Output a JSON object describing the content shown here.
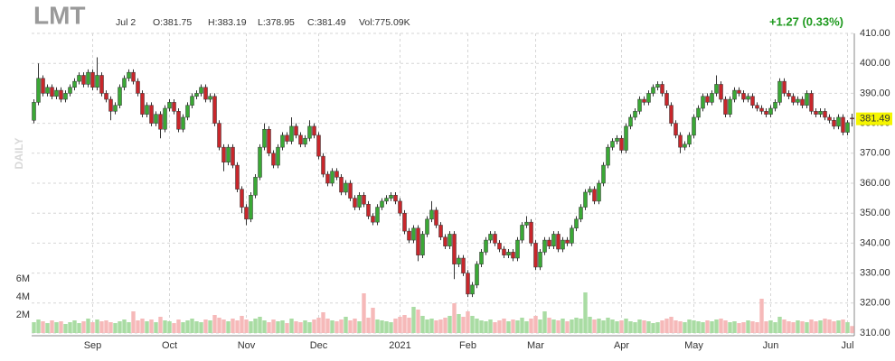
{
  "header": {
    "ticker": "LMT",
    "date": "Jul 2",
    "open": "O:381.75",
    "high": "H:383.19",
    "low": "L:378.95",
    "close": "C:381.49",
    "volume": "Vol:775.09K",
    "change": "+1.27 (0.33%)",
    "period": "DAILY",
    "last_price": "381.49"
  },
  "chart_data": {
    "type": "candlestick",
    "categories": [
      null,
      null,
      null,
      null,
      null,
      null,
      null,
      null,
      null,
      null,
      null,
      null,
      null,
      "Sep",
      null,
      null,
      null,
      null,
      null,
      null,
      null,
      null,
      null,
      null,
      null,
      null,
      null,
      null,
      null,
      null,
      "Oct",
      null,
      null,
      null,
      null,
      null,
      null,
      null,
      null,
      null,
      null,
      null,
      null,
      null,
      null,
      null,
      null,
      "Nov",
      null,
      null,
      null,
      null,
      null,
      null,
      null,
      null,
      null,
      null,
      null,
      null,
      null,
      null,
      null,
      "Dec",
      null,
      null,
      null,
      null,
      null,
      null,
      null,
      null,
      null,
      null,
      null,
      null,
      null,
      null,
      null,
      null,
      null,
      "2021",
      null,
      null,
      null,
      null,
      null,
      null,
      null,
      null,
      null,
      null,
      null,
      null,
      null,
      null,
      "Feb",
      null,
      null,
      null,
      null,
      null,
      null,
      null,
      null,
      null,
      null,
      null,
      null,
      null,
      null,
      "Mar",
      null,
      null,
      null,
      null,
      null,
      null,
      null,
      null,
      null,
      null,
      null,
      null,
      null,
      null,
      null,
      null,
      null,
      null,
      "Apr",
      null,
      null,
      null,
      null,
      null,
      null,
      null,
      null,
      null,
      null,
      null,
      null,
      null,
      null,
      null,
      "May",
      null,
      null,
      null,
      null,
      null,
      null,
      null,
      null,
      null,
      null,
      null,
      null,
      null,
      null,
      null,
      null,
      "Jun",
      null,
      null,
      null,
      null,
      null,
      null,
      null,
      null,
      null,
      null,
      null,
      null,
      null,
      null,
      null,
      null,
      "Jul",
      null
    ],
    "open": [
      381,
      387,
      395,
      390,
      392,
      389,
      391,
      388,
      390,
      392,
      394,
      396,
      393,
      397,
      392,
      396,
      390,
      388,
      384,
      386,
      392,
      395,
      397,
      394,
      390,
      383,
      386,
      380,
      383,
      378,
      385,
      387,
      384,
      378,
      382,
      386,
      389,
      390,
      392,
      388,
      389,
      380,
      372,
      367,
      372,
      366,
      358,
      352,
      348,
      356,
      362,
      372,
      378,
      370,
      366,
      372,
      376,
      374,
      379,
      376,
      373,
      375,
      379,
      376,
      369,
      363,
      360,
      364,
      362,
      357,
      360,
      355,
      352,
      356,
      353,
      349,
      347,
      352,
      354,
      355,
      356,
      354,
      350,
      344,
      341,
      345,
      336,
      343,
      348,
      351,
      346,
      342,
      339,
      343,
      333,
      335,
      330,
      323,
      326,
      333,
      337,
      341,
      343,
      340,
      338,
      336,
      337,
      335,
      341,
      346,
      347,
      340,
      332,
      337,
      341,
      339,
      343,
      338,
      341,
      340,
      345,
      348,
      352,
      357,
      358,
      354,
      360,
      366,
      372,
      374,
      375,
      371,
      379,
      382,
      384,
      388,
      387,
      390,
      392,
      393,
      390,
      386,
      380,
      376,
      372,
      373,
      376,
      382,
      385,
      389,
      387,
      390,
      393,
      388,
      383,
      388,
      391,
      390,
      388,
      389,
      386,
      385,
      384,
      383,
      385,
      387,
      394,
      390,
      389,
      387,
      388,
      386,
      390,
      384,
      383,
      384,
      382,
      381,
      379,
      382,
      377,
      381.75
    ],
    "high": [
      388,
      400,
      396,
      393,
      393,
      392,
      392,
      391,
      393,
      395,
      397,
      397,
      398,
      398,
      402,
      397,
      391,
      389,
      387,
      393,
      396,
      398,
      398,
      395,
      391,
      387,
      387,
      384,
      384,
      386,
      388,
      388,
      385,
      383,
      387,
      390,
      391,
      393,
      393,
      390,
      390,
      381,
      373,
      373,
      373,
      367,
      359,
      353,
      357,
      363,
      373,
      380,
      379,
      371,
      373,
      377,
      377,
      382,
      380,
      377,
      376,
      381,
      380,
      377,
      370,
      364,
      365,
      365,
      363,
      361,
      361,
      356,
      357,
      357,
      354,
      350,
      353,
      355,
      356,
      357,
      357,
      355,
      351,
      345,
      346,
      346,
      344,
      349,
      354,
      352,
      347,
      343,
      344,
      344,
      336,
      336,
      331,
      327,
      334,
      338,
      342,
      344,
      344,
      341,
      339,
      338,
      338,
      342,
      347,
      349,
      348,
      341,
      338,
      342,
      342,
      344,
      344,
      342,
      342,
      346,
      349,
      353,
      358,
      359,
      359,
      361,
      367,
      373,
      375,
      376,
      376,
      380,
      383,
      385,
      389,
      389,
      391,
      393,
      394,
      394,
      391,
      387,
      381,
      377,
      374,
      377,
      383,
      386,
      390,
      390,
      391,
      396,
      394,
      389,
      389,
      392,
      392,
      391,
      390,
      390,
      387,
      386,
      385,
      386,
      388,
      395,
      395,
      391,
      390,
      389,
      389,
      391,
      391,
      385,
      385,
      385,
      383,
      382,
      383,
      383,
      381,
      383.19
    ],
    "low": [
      380,
      386,
      389,
      389,
      388,
      388,
      387,
      387,
      389,
      391,
      393,
      392,
      392,
      391,
      391,
      389,
      387,
      381,
      383,
      385,
      391,
      394,
      393,
      389,
      382,
      382,
      379,
      379,
      375,
      377,
      384,
      383,
      377,
      377,
      381,
      385,
      388,
      389,
      387,
      387,
      379,
      371,
      364,
      366,
      365,
      357,
      350,
      346,
      347,
      355,
      361,
      371,
      369,
      365,
      365,
      371,
      373,
      373,
      375,
      372,
      372,
      374,
      375,
      368,
      362,
      359,
      359,
      361,
      356,
      356,
      354,
      351,
      351,
      352,
      348,
      346,
      346,
      351,
      353,
      354,
      353,
      349,
      343,
      340,
      340,
      334,
      335,
      342,
      347,
      345,
      341,
      338,
      338,
      328,
      332,
      329,
      322,
      322,
      325,
      332,
      336,
      340,
      339,
      337,
      335,
      335,
      334,
      334,
      340,
      345,
      339,
      331,
      331,
      336,
      338,
      338,
      337,
      337,
      339,
      339,
      344,
      347,
      351,
      356,
      353,
      353,
      359,
      365,
      371,
      373,
      370,
      370,
      378,
      381,
      383,
      386,
      386,
      389,
      391,
      389,
      385,
      379,
      375,
      370,
      371,
      372,
      375,
      381,
      384,
      386,
      386,
      389,
      387,
      382,
      382,
      387,
      389,
      387,
      387,
      385,
      384,
      383,
      382,
      382,
      384,
      386,
      389,
      388,
      386,
      386,
      385,
      385,
      383,
      382,
      382,
      381,
      380,
      378,
      378,
      376,
      376,
      378.95
    ],
    "close": [
      387,
      395,
      390,
      392,
      389,
      391,
      388,
      390,
      392,
      394,
      396,
      393,
      397,
      392,
      396,
      390,
      388,
      384,
      386,
      392,
      395,
      397,
      394,
      390,
      383,
      386,
      380,
      383,
      378,
      385,
      387,
      384,
      378,
      382,
      386,
      389,
      390,
      392,
      388,
      389,
      380,
      372,
      367,
      372,
      366,
      358,
      352,
      348,
      356,
      362,
      372,
      378,
      370,
      366,
      372,
      376,
      374,
      379,
      376,
      373,
      375,
      379,
      376,
      369,
      363,
      360,
      364,
      362,
      357,
      360,
      355,
      352,
      356,
      353,
      349,
      347,
      352,
      354,
      355,
      356,
      354,
      350,
      344,
      341,
      345,
      336,
      343,
      348,
      351,
      346,
      342,
      339,
      343,
      333,
      335,
      330,
      323,
      326,
      333,
      337,
      341,
      343,
      340,
      338,
      336,
      337,
      335,
      341,
      346,
      347,
      340,
      332,
      337,
      341,
      339,
      343,
      338,
      341,
      340,
      345,
      348,
      352,
      357,
      358,
      354,
      360,
      366,
      372,
      374,
      375,
      371,
      379,
      382,
      384,
      388,
      387,
      390,
      392,
      393,
      390,
      386,
      380,
      376,
      372,
      373,
      376,
      382,
      385,
      389,
      387,
      390,
      393,
      388,
      383,
      388,
      391,
      390,
      388,
      389,
      386,
      385,
      384,
      383,
      385,
      387,
      394,
      390,
      389,
      387,
      388,
      386,
      390,
      384,
      383,
      384,
      382,
      381,
      379,
      382,
      377,
      380.22,
      381.49
    ],
    "volume": [
      1.2,
      1.5,
      1.3,
      1.1,
      1.4,
      1.2,
      1.3,
      1.0,
      1.2,
      1.4,
      1.1,
      1.3,
      1.6,
      1.2,
      1.5,
      1.3,
      1.4,
      1.2,
      1.1,
      1.3,
      1.5,
      1.2,
      2.4,
      1.4,
      1.6,
      1.3,
      1.5,
      1.2,
      1.8,
      1.4,
      1.3,
      1.1,
      1.5,
      1.2,
      1.4,
      1.6,
      1.3,
      1.2,
      1.5,
      1.4,
      2.0,
      1.7,
      1.5,
      1.3,
      1.6,
      1.4,
      1.9,
      1.5,
      1.3,
      1.6,
      1.8,
      1.4,
      1.2,
      1.5,
      1.3,
      1.4,
      1.1,
      1.6,
      1.3,
      1.2,
      1.4,
      1.2,
      1.5,
      1.7,
      2.3,
      1.6,
      1.4,
      1.3,
      1.5,
      1.8,
      1.4,
      1.6,
      1.3,
      4.4,
      1.7,
      2.8,
      1.5,
      1.4,
      1.3,
      1.2,
      1.6,
      1.8,
      2.0,
      1.7,
      2.9,
      2.6,
      1.9,
      1.5,
      1.6,
      1.4,
      1.5,
      1.7,
      1.9,
      3.3,
      2.1,
      1.8,
      2.4,
      1.9,
      1.6,
      1.4,
      1.3,
      1.5,
      1.2,
      1.4,
      1.6,
      1.3,
      1.5,
      1.4,
      1.7,
      1.3,
      1.6,
      1.9,
      1.5,
      2.4,
      1.7,
      1.5,
      1.4,
      1.6,
      1.3,
      1.5,
      1.7,
      1.6,
      4.5,
      1.8,
      1.5,
      1.6,
      1.4,
      1.7,
      1.5,
      1.3,
      1.4,
      1.6,
      1.3,
      1.2,
      1.5,
      1.4,
      1.3,
      1.1,
      1.2,
      1.4,
      1.6,
      1.8,
      1.4,
      1.3,
      1.2,
      1.5,
      1.4,
      1.3,
      1.2,
      1.4,
      1.3,
      1.5,
      1.6,
      1.4,
      1.2,
      1.3,
      1.1,
      1.2,
      1.4,
      1.3,
      1.2,
      3.8,
      1.3,
      1.4,
      1.2,
      1.8,
      1.5,
      1.3,
      1.2,
      1.4,
      1.3,
      1.2,
      1.5,
      1.3,
      1.4,
      1.6,
      1.5,
      1.3,
      1.4,
      1.5,
      1.2,
      0.77509
    ],
    "up_color": "#3aa835",
    "down_color": "#c8262b",
    "wick_color": "#333333",
    "volume_up_color": "#a9dca3",
    "volume_down_color": "#f6b9b9",
    "ylim": [
      310,
      410
    ],
    "yticks": [
      {
        "value": 310,
        "label": "310.00"
      },
      {
        "value": 320,
        "label": "320.00"
      },
      {
        "value": 330,
        "label": "330.00"
      },
      {
        "value": 340,
        "label": "340.00"
      },
      {
        "value": 350,
        "label": "350.00"
      },
      {
        "value": 360,
        "label": "360.00"
      },
      {
        "value": 370,
        "label": "370.00"
      },
      {
        "value": 380,
        "label": "380.00"
      },
      {
        "value": 390,
        "label": "390.00"
      },
      {
        "value": 400,
        "label": "400.00"
      },
      {
        "value": 410,
        "label": "410.00"
      }
    ],
    "y2lim": [
      0,
      6
    ],
    "y2ticks": [
      {
        "value": 2,
        "label": "2M"
      },
      {
        "value": 4,
        "label": "4M"
      },
      {
        "value": 6,
        "label": "6M"
      }
    ],
    "grid": true
  }
}
